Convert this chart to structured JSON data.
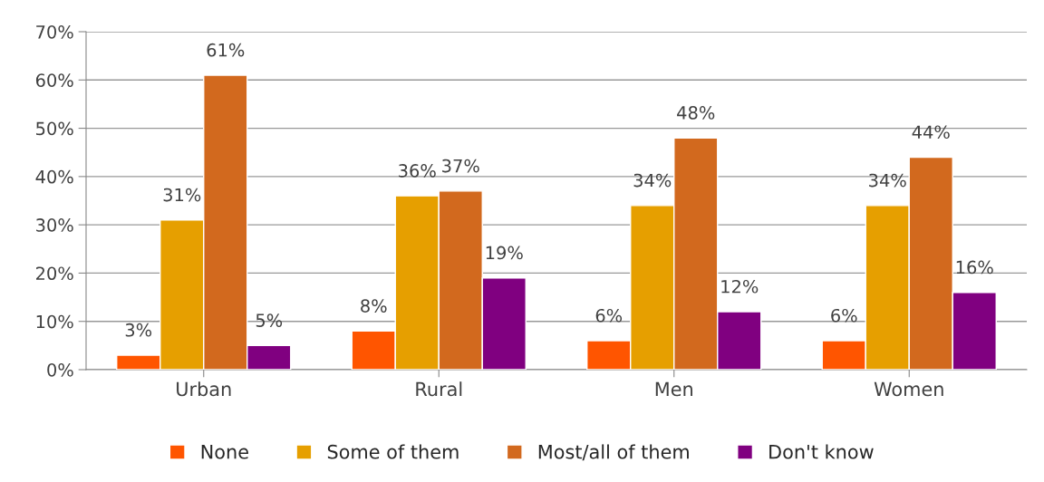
{
  "chart_data": {
    "type": "bar",
    "categories": [
      "Urban",
      "Rural",
      "Men",
      "Women"
    ],
    "series": [
      {
        "name": "None",
        "color": "#ff5500",
        "values": [
          3,
          8,
          6,
          6
        ]
      },
      {
        "name": "Some of them",
        "color": "#e69f00",
        "values": [
          31,
          36,
          34,
          34
        ]
      },
      {
        "name": "Most/all of them",
        "color": "#d2691e",
        "values": [
          61,
          37,
          48,
          44
        ]
      },
      {
        "name": "Don't know",
        "color": "#800080",
        "values": [
          5,
          19,
          12,
          16
        ]
      }
    ],
    "ylim": [
      0,
      70
    ],
    "yticks": [
      {
        "value": 0,
        "label": "0%"
      },
      {
        "value": 10,
        "label": "10%"
      },
      {
        "value": 20,
        "label": "20%"
      },
      {
        "value": 30,
        "label": "30%"
      },
      {
        "value": 40,
        "label": "40%"
      },
      {
        "value": 50,
        "label": "50%"
      },
      {
        "value": 60,
        "label": "60%"
      },
      {
        "value": 70,
        "label": "70%"
      }
    ],
    "value_labels": [
      [
        "3%",
        "8%",
        "6%",
        "6%"
      ],
      [
        "31%",
        "36%",
        "34%",
        "34%"
      ],
      [
        "61%",
        "37%",
        "48%",
        "44%"
      ],
      [
        "5%",
        "19%",
        "12%",
        "16%"
      ]
    ],
    "grid": "y",
    "legend": "bottom"
  }
}
